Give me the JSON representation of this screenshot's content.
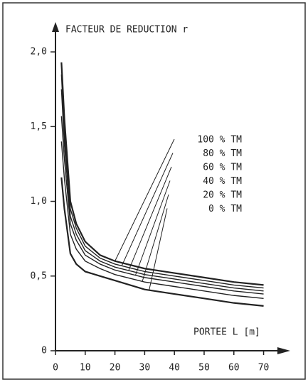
{
  "chart_data": {
    "type": "line",
    "title": "FACTEUR DE REDUCTION  r",
    "x_label": "PORTEE  L  [m]",
    "x": [
      2,
      3,
      5,
      7,
      10,
      15,
      20,
      30,
      40,
      50,
      60,
      70
    ],
    "series": [
      {
        "name": "100 % TM",
        "color": "#222",
        "values": [
          1.93,
          1.55,
          1.0,
          0.85,
          0.73,
          0.64,
          0.6,
          0.55,
          0.52,
          0.49,
          0.46,
          0.44
        ]
      },
      {
        "name": "80 % TM",
        "color": "#222",
        "values": [
          1.85,
          1.45,
          0.95,
          0.82,
          0.7,
          0.62,
          0.58,
          0.53,
          0.5,
          0.47,
          0.44,
          0.42
        ]
      },
      {
        "name": "60 % TM",
        "color": "#222",
        "values": [
          1.75,
          1.38,
          0.9,
          0.78,
          0.67,
          0.6,
          0.56,
          0.51,
          0.48,
          0.45,
          0.42,
          0.4
        ]
      },
      {
        "name": "40 % TM",
        "color": "#222",
        "values": [
          1.57,
          1.28,
          0.85,
          0.74,
          0.64,
          0.58,
          0.54,
          0.49,
          0.46,
          0.43,
          0.4,
          0.38
        ]
      },
      {
        "name": "20 % TM",
        "color": "#222",
        "values": [
          1.4,
          1.15,
          0.78,
          0.68,
          0.6,
          0.55,
          0.51,
          0.46,
          0.43,
          0.4,
          0.37,
          0.35
        ]
      },
      {
        "name": "0 % TM",
        "color": "#222",
        "values": [
          1.16,
          0.95,
          0.65,
          0.58,
          0.53,
          0.5,
          0.47,
          0.41,
          0.38,
          0.35,
          0.32,
          0.3
        ]
      }
    ],
    "xlim": [
      0,
      78
    ],
    "ylim": [
      0,
      2.2
    ],
    "xticks": [
      0,
      10,
      20,
      30,
      40,
      50,
      60,
      70
    ],
    "yticks": [
      0,
      {
        "value": 0.5,
        "label": "0,5"
      },
      {
        "value": 1.0,
        "label": "1,0"
      },
      {
        "value": 1.5,
        "label": "1,5"
      },
      {
        "value": 2.0,
        "label": "2,0"
      }
    ]
  }
}
